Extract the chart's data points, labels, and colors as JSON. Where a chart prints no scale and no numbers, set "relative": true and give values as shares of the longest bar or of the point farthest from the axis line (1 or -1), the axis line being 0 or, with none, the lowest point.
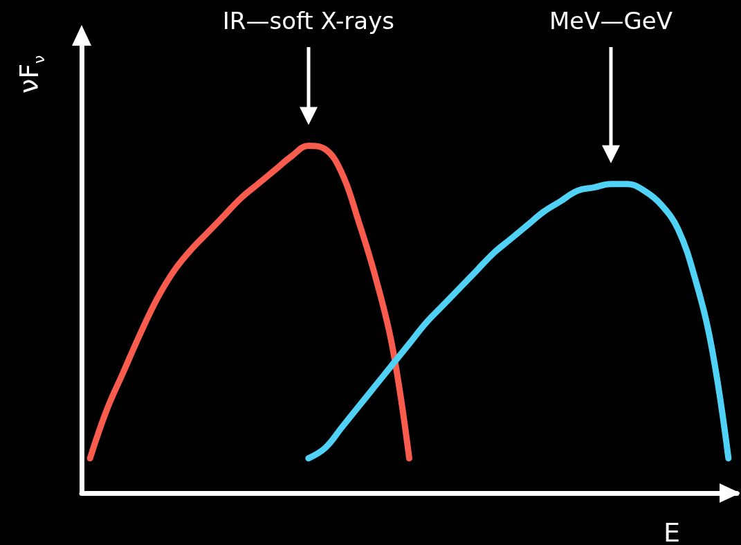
{
  "chart_data": {
    "type": "line",
    "relative": true,
    "xlabel": "E",
    "ylabel": "νF$_{ν}$",
    "categories": [
      null,
      null,
      null,
      null,
      null,
      null,
      null,
      null,
      null,
      null,
      null,
      null,
      null,
      null,
      null,
      null,
      null,
      null,
      null,
      null,
      null,
      null,
      null,
      null,
      null,
      null,
      null,
      null,
      null,
      null,
      null,
      null,
      null,
      null,
      null,
      null,
      null,
      null,
      null
    ],
    "series": [
      {
        "color": "#f95b4d",
        "values": [
          0.1,
          0.24,
          0.35,
          0.46,
          0.56,
          0.64,
          0.7,
          0.75,
          0.8,
          0.85,
          0.89,
          0.93,
          0.97,
          1.0,
          0.99,
          0.92,
          0.78,
          0.62,
          0.42,
          0.1,
          null,
          null,
          null,
          null,
          null,
          null,
          null,
          null,
          null,
          null,
          null,
          null,
          null,
          null,
          null,
          null,
          null,
          null,
          null
        ]
      },
      {
        "color": "#4fd2f5",
        "values": [
          null,
          null,
          null,
          null,
          null,
          null,
          null,
          null,
          null,
          null,
          null,
          null,
          null,
          0.1,
          0.13,
          0.19,
          0.25,
          0.31,
          0.37,
          0.43,
          0.49,
          0.54,
          0.59,
          0.64,
          0.69,
          0.73,
          0.77,
          0.81,
          0.84,
          0.87,
          0.88,
          0.89,
          0.89,
          0.87,
          0.83,
          0.76,
          0.62,
          0.42,
          0.1
        ]
      }
    ],
    "annotations": [
      "IR—soft X-rays",
      "MeV—GeV"
    ],
    "grid": false,
    "marker": "none",
    "line_style": "solid"
  }
}
